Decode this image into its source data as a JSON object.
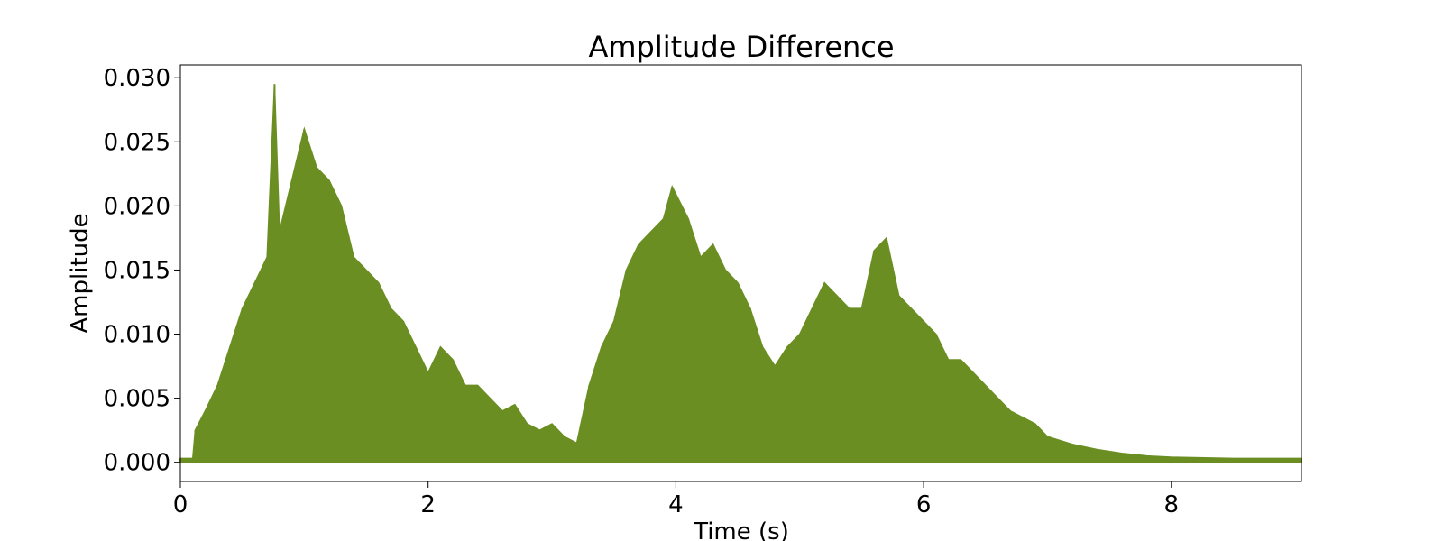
{
  "chart_data": {
    "type": "area",
    "title": "Amplitude Difference",
    "xlabel": "Time (s)",
    "ylabel": "Amplitude",
    "xlim": [
      0,
      9.05
    ],
    "ylim": [
      -0.0015,
      0.031
    ],
    "xticks": [
      0,
      2,
      4,
      6,
      8
    ],
    "xtick_labels": [
      "0",
      "2",
      "4",
      "6",
      "8"
    ],
    "yticks": [
      0.0,
      0.005,
      0.01,
      0.015,
      0.02,
      0.025,
      0.03
    ],
    "ytick_labels": [
      "0.000",
      "0.005",
      "0.010",
      "0.015",
      "0.020",
      "0.025",
      "0.030"
    ],
    "grid": false,
    "legend": null,
    "series": [
      {
        "color": "#6b8e23",
        "envelope_x": [
          0,
          0.1,
          0.12,
          0.2,
          0.3,
          0.4,
          0.5,
          0.6,
          0.7,
          0.76,
          0.8,
          0.9,
          1.0,
          1.1,
          1.2,
          1.3,
          1.4,
          1.5,
          1.6,
          1.7,
          1.8,
          1.9,
          2.0,
          2.1,
          2.2,
          2.3,
          2.4,
          2.5,
          2.6,
          2.7,
          2.8,
          2.9,
          3.0,
          3.1,
          3.2,
          3.3,
          3.4,
          3.5,
          3.6,
          3.7,
          3.8,
          3.9,
          3.97,
          4.1,
          4.2,
          4.3,
          4.4,
          4.5,
          4.6,
          4.7,
          4.8,
          4.9,
          5.0,
          5.1,
          5.2,
          5.3,
          5.4,
          5.5,
          5.6,
          5.7,
          5.8,
          5.9,
          6.0,
          6.1,
          6.2,
          6.3,
          6.4,
          6.5,
          6.6,
          6.7,
          6.8,
          6.9,
          7.0,
          7.2,
          7.4,
          7.6,
          7.8,
          8.0,
          8.5,
          9.05
        ],
        "envelope_y": [
          0.0003,
          0.0003,
          0.0025,
          0.004,
          0.006,
          0.009,
          0.012,
          0.014,
          0.016,
          0.0295,
          0.018,
          0.022,
          0.026,
          0.023,
          0.022,
          0.02,
          0.016,
          0.015,
          0.014,
          0.012,
          0.011,
          0.009,
          0.007,
          0.009,
          0.008,
          0.006,
          0.006,
          0.005,
          0.004,
          0.0045,
          0.003,
          0.0025,
          0.003,
          0.002,
          0.0015,
          0.006,
          0.009,
          0.011,
          0.015,
          0.017,
          0.018,
          0.019,
          0.0215,
          0.019,
          0.016,
          0.017,
          0.015,
          0.014,
          0.012,
          0.009,
          0.0075,
          0.009,
          0.01,
          0.012,
          0.014,
          0.013,
          0.012,
          0.012,
          0.0165,
          0.0175,
          0.013,
          0.012,
          0.011,
          0.01,
          0.008,
          0.008,
          0.007,
          0.006,
          0.005,
          0.004,
          0.0035,
          0.003,
          0.002,
          0.0014,
          0.001,
          0.0007,
          0.0005,
          0.0004,
          0.0003,
          0.0003
        ]
      }
    ]
  }
}
